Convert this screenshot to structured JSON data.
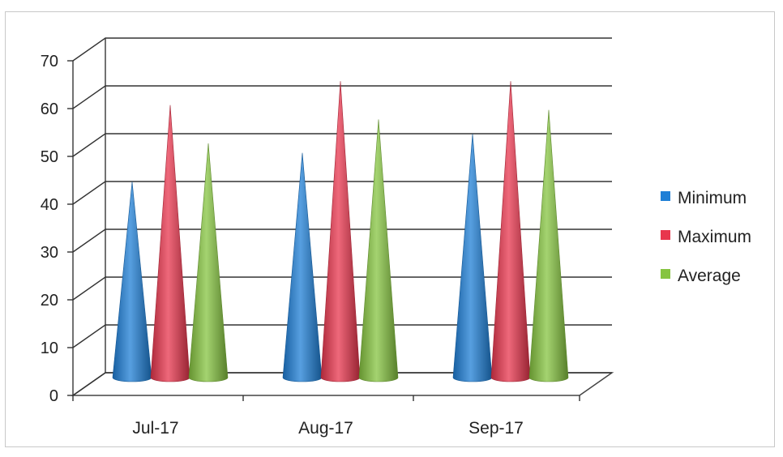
{
  "chart_data": {
    "type": "bar",
    "style": "3d-cone",
    "categories": [
      "Jul-17",
      "Aug-17",
      "Sep-17"
    ],
    "series": [
      {
        "name": "Minimum",
        "values": [
          41,
          47,
          51
        ],
        "color": "#1f7fd6"
      },
      {
        "name": "Maximum",
        "values": [
          57,
          62,
          62
        ],
        "color": "#e8364d"
      },
      {
        "name": "Average",
        "values": [
          49,
          54,
          56
        ],
        "color": "#86c440"
      }
    ],
    "yticks": [
      0,
      10,
      20,
      30,
      40,
      50,
      60,
      70
    ],
    "ylim": [
      0,
      70
    ],
    "title": "",
    "xlabel": "",
    "ylabel": "",
    "grid": true,
    "legend_position": "right"
  }
}
